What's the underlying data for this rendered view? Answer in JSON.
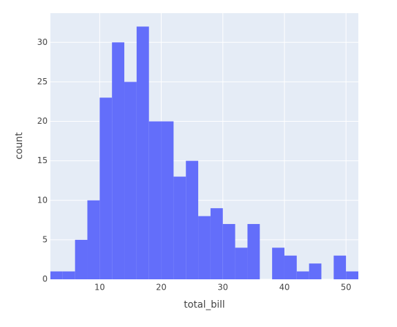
{
  "chart_data": {
    "type": "histogram",
    "x_label": "total_bill",
    "y_label": "count",
    "bins": [
      2,
      4,
      6,
      8,
      10,
      12,
      14,
      16,
      18,
      20,
      22,
      24,
      26,
      28,
      30,
      32,
      34,
      36,
      38,
      40,
      42,
      44,
      46,
      48,
      50,
      52
    ],
    "values": [
      1,
      1,
      5,
      10,
      23,
      30,
      25,
      32,
      20,
      20,
      13,
      15,
      8,
      9,
      7,
      4,
      7,
      0,
      4,
      3,
      1,
      2,
      0,
      3,
      1
    ],
    "color": "#636efa",
    "xlim": [
      2,
      52
    ],
    "xticks": [
      10,
      20,
      30,
      40,
      50
    ],
    "ylim": [
      0,
      33.7
    ],
    "yticks": [
      0,
      5,
      10,
      15,
      20,
      25,
      30
    ],
    "grid": true
  }
}
